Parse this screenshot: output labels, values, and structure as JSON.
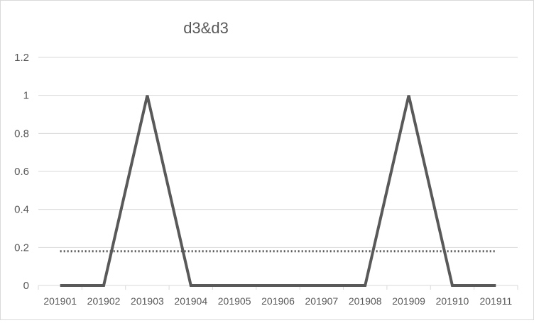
{
  "chart_data": {
    "type": "line",
    "title": "d3&d3",
    "categories": [
      "201901",
      "201902",
      "201903",
      "201904",
      "201905",
      "201906",
      "201907",
      "201908",
      "201909",
      "201910",
      "201911"
    ],
    "series": [
      {
        "values": [
          0,
          0,
          1,
          0,
          0,
          0,
          0,
          0,
          1,
          0,
          0
        ],
        "color": "#595959",
        "style": "solid"
      },
      {
        "values": [
          0.18,
          0.18,
          0.18,
          0.18,
          0.18,
          0.18,
          0.18,
          0.18,
          0.18,
          0.18,
          0.18
        ],
        "color": "#595959",
        "style": "dotted"
      }
    ],
    "ylim": [
      0,
      1.2
    ],
    "yticks": [
      "0",
      "0.2",
      "0.4",
      "0.6",
      "0.8",
      "1",
      "1.2"
    ],
    "grid": true,
    "legend": "none"
  }
}
